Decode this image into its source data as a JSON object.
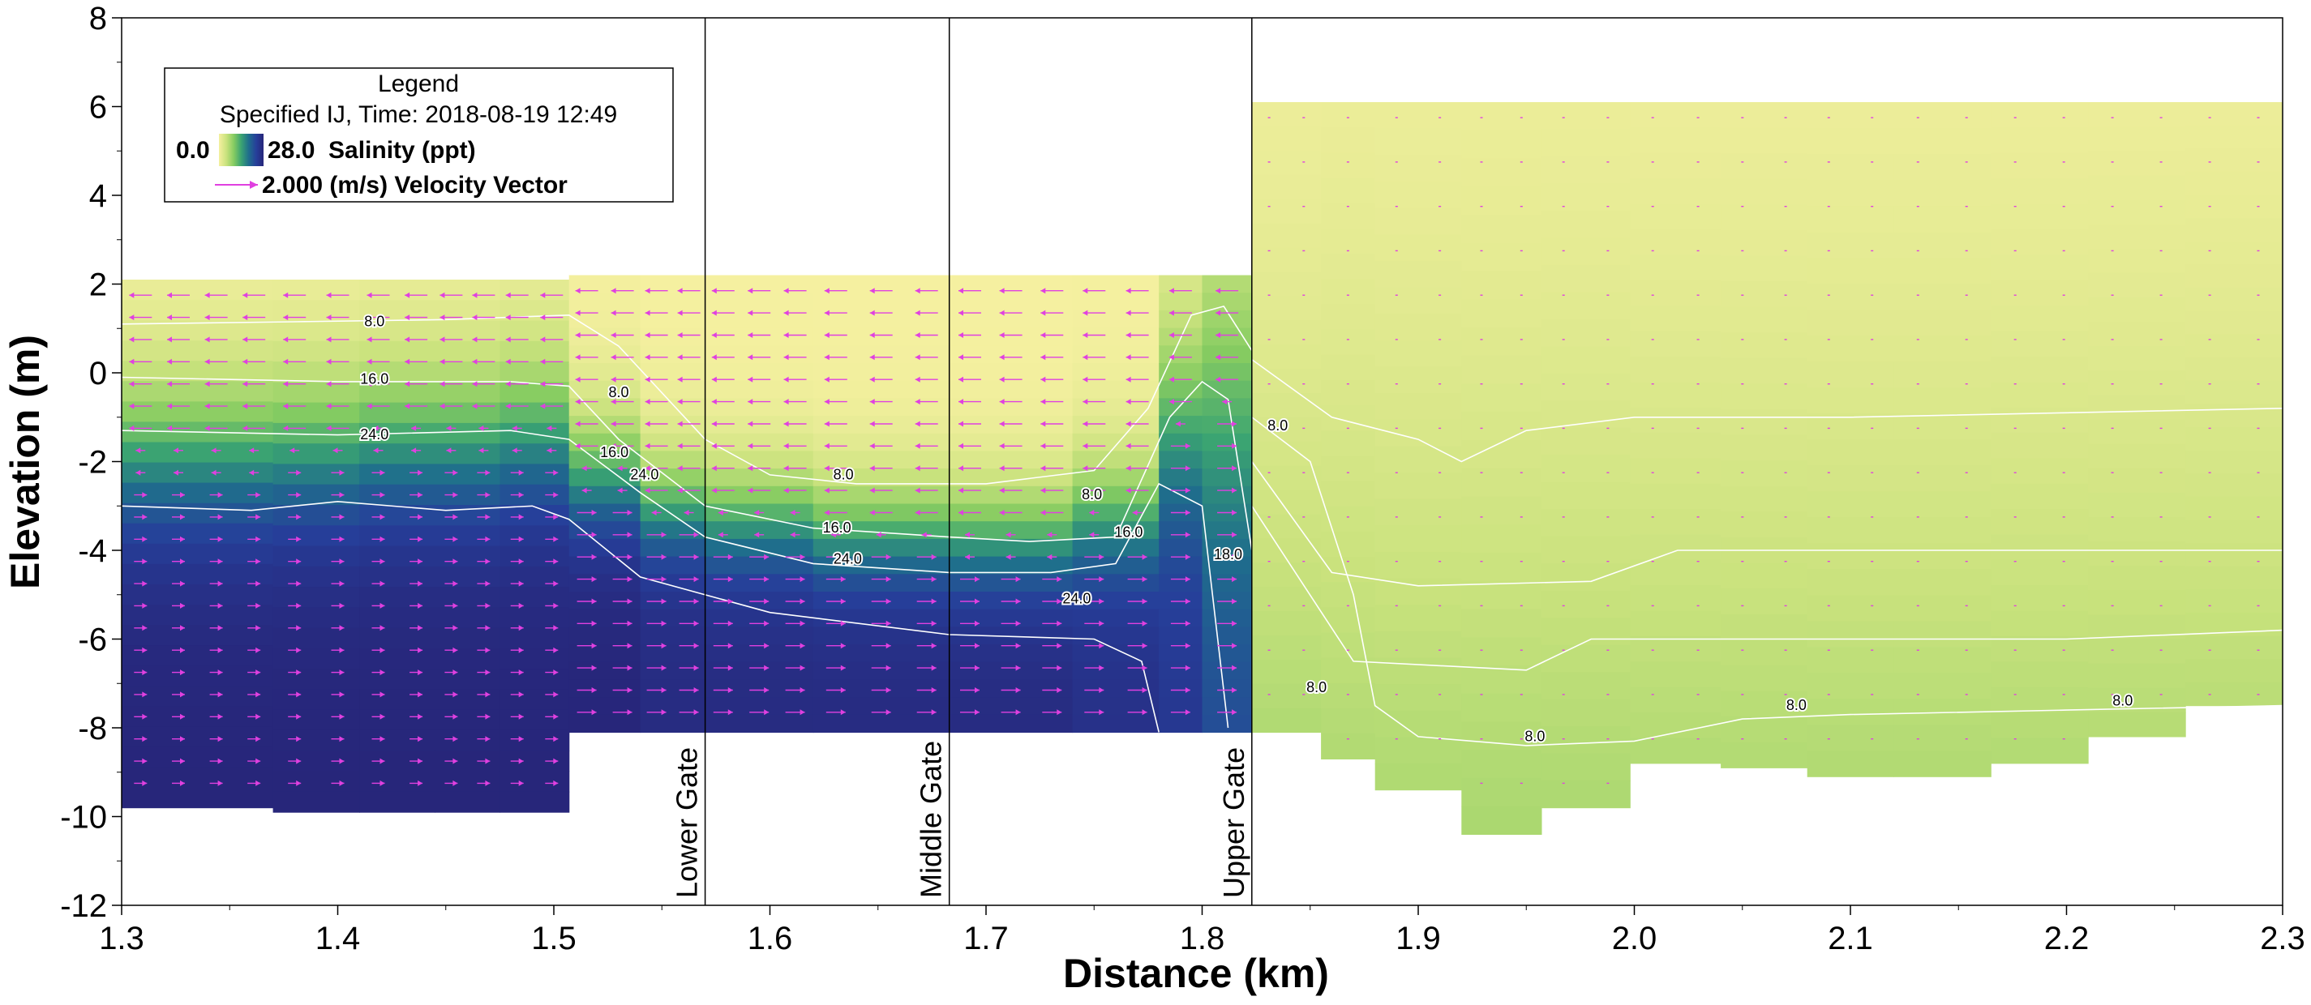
{
  "chart_data": {
    "type": "heatmap",
    "xlabel": "Distance (km)",
    "ylabel": "Elevation (m)",
    "xlim": [
      1.3,
      2.3
    ],
    "ylim": [
      -12,
      8
    ],
    "xticks": [
      1.3,
      1.4,
      1.5,
      1.6,
      1.7,
      1.8,
      1.9,
      2.0,
      2.1,
      2.2,
      2.3
    ],
    "yticks": [
      -12,
      -10,
      -8,
      -6,
      -4,
      -2,
      0,
      2,
      4,
      6,
      8
    ],
    "grid": false,
    "legend_position": "top-left",
    "legend": {
      "title": "Legend",
      "subtitle": "Specified IJ, Time: 2018-08-19 12:49",
      "colorbar_min": "0.0",
      "colorbar_max": "28.0",
      "colorbar_label": "Salinity (ppt)",
      "vector_label": "2.000 (m/s) Velocity Vector"
    },
    "colorscale": {
      "min": 0,
      "max": 28,
      "stops": [
        "#f5f0a0",
        "#c9e27d",
        "#86cc61",
        "#3aa372",
        "#1f6e8c",
        "#263f9a",
        "#27267a"
      ]
    },
    "vector_color": "#e040e0",
    "contour_color": "#ffffff",
    "gates": [
      {
        "name": "Lower Gate",
        "x": 1.57
      },
      {
        "name": "Middle Gate",
        "x": 1.683
      },
      {
        "name": "Upper Gate",
        "x": 1.823
      }
    ],
    "profile": [
      {
        "x0": 1.3,
        "x1": 1.37,
        "top": 2.1,
        "bottom": -9.8,
        "bottom_layer": 28,
        "halocline": -1.8,
        "width": 1.2
      },
      {
        "x0": 1.37,
        "x1": 1.41,
        "top": 2.1,
        "bottom": -9.9,
        "bottom_layer": 28,
        "halocline": -1.7,
        "width": 1.2
      },
      {
        "x0": 1.41,
        "x1": 1.445,
        "top": 2.1,
        "bottom": -9.9,
        "bottom_layer": 28,
        "halocline": -1.5,
        "width": 1.2
      },
      {
        "x0": 1.445,
        "x1": 1.475,
        "top": 2.1,
        "bottom": -9.9,
        "bottom_layer": 28,
        "halocline": -1.5,
        "width": 1.2
      },
      {
        "x0": 1.475,
        "x1": 1.507,
        "top": 2.1,
        "bottom": -9.9,
        "bottom_layer": 28,
        "halocline": -1.3,
        "width": 1.2
      },
      {
        "x0": 1.507,
        "x1": 1.54,
        "top": 2.2,
        "bottom": -8.1,
        "bottom_layer": 28,
        "halocline": -2.3,
        "width": 0.9
      },
      {
        "x0": 1.54,
        "x1": 1.57,
        "top": 2.2,
        "bottom": -8.1,
        "bottom_layer": 27,
        "halocline": -3.0,
        "width": 0.8
      },
      {
        "x0": 1.57,
        "x1": 1.62,
        "top": 2.2,
        "bottom": -8.1,
        "bottom_layer": 27,
        "halocline": -3.3,
        "width": 0.8
      },
      {
        "x0": 1.62,
        "x1": 1.683,
        "top": 2.2,
        "bottom": -8.1,
        "bottom_layer": 27,
        "halocline": -3.6,
        "width": 0.8
      },
      {
        "x0": 1.683,
        "x1": 1.74,
        "top": 2.2,
        "bottom": -8.1,
        "bottom_layer": 27,
        "halocline": -3.7,
        "width": 0.8
      },
      {
        "x0": 1.74,
        "x1": 1.78,
        "top": 2.2,
        "bottom": -8.1,
        "bottom_layer": 26,
        "halocline": -3.2,
        "width": 0.9
      },
      {
        "x0": 1.78,
        "x1": 1.8,
        "top": 2.2,
        "bottom": -8.1,
        "bottom_layer": 25,
        "halocline": -1.0,
        "width": 1.6
      },
      {
        "x0": 1.8,
        "x1": 1.823,
        "top": 2.2,
        "bottom": -8.1,
        "bottom_layer": 23,
        "halocline": -0.5,
        "width": 2.5
      },
      {
        "x0": 1.823,
        "x1": 1.855,
        "top": 6.1,
        "bottom": -8.1,
        "bottom_layer": 9,
        "halocline": -4.0,
        "width": 4.5
      },
      {
        "x0": 1.855,
        "x1": 1.88,
        "top": 6.1,
        "bottom": -8.7,
        "bottom_layer": 9,
        "halocline": -4.2,
        "width": 5.0
      },
      {
        "x0": 1.88,
        "x1": 1.92,
        "top": 6.1,
        "bottom": -9.4,
        "bottom_layer": 9,
        "halocline": -4.5,
        "width": 5.0
      },
      {
        "x0": 1.92,
        "x1": 1.957,
        "top": 6.1,
        "bottom": -10.4,
        "bottom_layer": 9,
        "halocline": -4.5,
        "width": 5.0
      },
      {
        "x0": 1.957,
        "x1": 1.998,
        "top": 6.1,
        "bottom": -9.8,
        "bottom_layer": 9,
        "halocline": -4.5,
        "width": 5.0
      },
      {
        "x0": 1.998,
        "x1": 2.04,
        "top": 6.1,
        "bottom": -8.8,
        "bottom_layer": 9,
        "halocline": -4.6,
        "width": 5.0
      },
      {
        "x0": 2.04,
        "x1": 2.08,
        "top": 6.1,
        "bottom": -8.9,
        "bottom_layer": 9,
        "halocline": -4.6,
        "width": 5.0
      },
      {
        "x0": 2.08,
        "x1": 2.12,
        "top": 6.1,
        "bottom": -9.1,
        "bottom_layer": 9,
        "halocline": -4.6,
        "width": 5.0
      },
      {
        "x0": 2.12,
        "x1": 2.165,
        "top": 6.1,
        "bottom": -9.1,
        "bottom_layer": 9,
        "halocline": -4.6,
        "width": 5.0
      },
      {
        "x0": 2.165,
        "x1": 2.21,
        "top": 6.1,
        "bottom": -8.8,
        "bottom_layer": 9,
        "halocline": -4.6,
        "width": 5.0
      },
      {
        "x0": 2.21,
        "x1": 2.255,
        "top": 6.1,
        "bottom": -8.2,
        "bottom_layer": 9,
        "halocline": -4.6,
        "width": 5.0
      },
      {
        "x0": 2.255,
        "x1": 2.3,
        "top": 6.1,
        "bottom": -7.5,
        "bottom_layer": 9,
        "halocline": -4.6,
        "width": 5.0
      }
    ],
    "contours": [
      {
        "level": "8.0",
        "points": [
          [
            1.3,
            1.1
          ],
          [
            1.38,
            1.15
          ],
          [
            1.45,
            1.2
          ],
          [
            1.507,
            1.3
          ],
          [
            1.53,
            0.6
          ],
          [
            1.57,
            -1.5
          ],
          [
            1.6,
            -2.3
          ],
          [
            1.64,
            -2.5
          ],
          [
            1.7,
            -2.5
          ],
          [
            1.75,
            -2.2
          ],
          [
            1.775,
            -0.8
          ],
          [
            1.795,
            1.3
          ],
          [
            1.81,
            1.5
          ],
          [
            1.823,
            0.5
          ]
        ]
      },
      {
        "level": "16.0",
        "points": [
          [
            1.3,
            -0.1
          ],
          [
            1.4,
            -0.2
          ],
          [
            1.48,
            -0.2
          ],
          [
            1.507,
            -0.3
          ],
          [
            1.53,
            -1.5
          ],
          [
            1.57,
            -3.0
          ],
          [
            1.62,
            -3.5
          ],
          [
            1.683,
            -3.7
          ],
          [
            1.72,
            -3.8
          ],
          [
            1.76,
            -3.7
          ],
          [
            1.785,
            -1.0
          ],
          [
            1.8,
            -0.2
          ],
          [
            1.812,
            -0.6
          ],
          [
            1.823,
            -4.0
          ]
        ]
      },
      {
        "level": "24.0",
        "points": [
          [
            1.3,
            -1.3
          ],
          [
            1.4,
            -1.4
          ],
          [
            1.48,
            -1.3
          ],
          [
            1.507,
            -1.5
          ],
          [
            1.54,
            -2.7
          ],
          [
            1.57,
            -3.7
          ],
          [
            1.62,
            -4.3
          ],
          [
            1.683,
            -4.5
          ],
          [
            1.73,
            -4.5
          ],
          [
            1.76,
            -4.3
          ],
          [
            1.78,
            -2.5
          ],
          [
            1.8,
            -3.0
          ],
          [
            1.812,
            -8.0
          ]
        ]
      },
      {
        "level": "",
        "points": [
          [
            1.3,
            -3.0
          ],
          [
            1.36,
            -3.1
          ],
          [
            1.4,
            -2.9
          ],
          [
            1.45,
            -3.1
          ],
          [
            1.49,
            -3.0
          ],
          [
            1.507,
            -3.3
          ],
          [
            1.54,
            -4.6
          ],
          [
            1.6,
            -5.4
          ],
          [
            1.683,
            -5.9
          ],
          [
            1.75,
            -6.0
          ],
          [
            1.772,
            -6.5
          ],
          [
            1.78,
            -8.1
          ]
        ]
      },
      {
        "level": "8.0",
        "points": [
          [
            1.823,
            -1.0
          ],
          [
            1.85,
            -2.0
          ],
          [
            1.87,
            -5.0
          ],
          [
            1.88,
            -7.5
          ],
          [
            1.9,
            -8.2
          ],
          [
            1.95,
            -8.4
          ],
          [
            2.0,
            -8.3
          ],
          [
            2.05,
            -7.8
          ],
          [
            2.1,
            -7.7
          ],
          [
            2.2,
            -7.6
          ],
          [
            2.3,
            -7.5
          ]
        ]
      },
      {
        "level": "",
        "points": [
          [
            1.823,
            0.3
          ],
          [
            1.86,
            -1.0
          ],
          [
            1.9,
            -1.5
          ],
          [
            1.92,
            -2.0
          ],
          [
            1.95,
            -1.3
          ],
          [
            2.0,
            -1.0
          ],
          [
            2.1,
            -1.0
          ],
          [
            2.2,
            -0.9
          ],
          [
            2.3,
            -0.8
          ]
        ]
      },
      {
        "level": "",
        "points": [
          [
            1.823,
            -2.0
          ],
          [
            1.86,
            -4.5
          ],
          [
            1.9,
            -4.8
          ],
          [
            1.98,
            -4.7
          ],
          [
            2.02,
            -4.0
          ],
          [
            2.1,
            -4.0
          ],
          [
            2.2,
            -4.0
          ],
          [
            2.3,
            -4.0
          ]
        ]
      },
      {
        "level": "",
        "points": [
          [
            1.823,
            -3.0
          ],
          [
            1.87,
            -6.5
          ],
          [
            1.95,
            -6.7
          ],
          [
            1.98,
            -6.0
          ],
          [
            2.05,
            -6.0
          ],
          [
            2.1,
            -6.0
          ],
          [
            2.2,
            -6.0
          ],
          [
            2.3,
            -5.8
          ]
        ]
      }
    ],
    "contour_label_positions": [
      {
        "text": "8.0",
        "x": 1.417,
        "y": 1.05
      },
      {
        "text": "16.0",
        "x": 1.417,
        "y": -0.25
      },
      {
        "text": "24.0",
        "x": 1.417,
        "y": -1.5
      },
      {
        "text": "8.0",
        "x": 1.53,
        "y": -0.55
      },
      {
        "text": "16.0",
        "x": 1.528,
        "y": -1.9
      },
      {
        "text": "24.0",
        "x": 1.542,
        "y": -2.4
      },
      {
        "text": "8.0",
        "x": 1.634,
        "y": -2.4
      },
      {
        "text": "8.0",
        "x": 1.749,
        "y": -2.85
      },
      {
        "text": "16.0",
        "x": 1.631,
        "y": -3.6
      },
      {
        "text": "24.0",
        "x": 1.636,
        "y": -4.3
      },
      {
        "text": "16.0",
        "x": 1.766,
        "y": -3.7
      },
      {
        "text": "24.0",
        "x": 1.742,
        "y": -5.2
      },
      {
        "text": "18.0",
        "x": 1.812,
        "y": -4.2
      },
      {
        "text": "8.0",
        "x": 1.835,
        "y": -1.3
      },
      {
        "text": "8.0",
        "x": 1.853,
        "y": -7.2
      },
      {
        "text": "8.0",
        "x": 1.954,
        "y": -8.3
      },
      {
        "text": "8.0",
        "x": 2.075,
        "y": -7.6
      },
      {
        "text": "8.0",
        "x": 2.226,
        "y": -7.5
      }
    ]
  }
}
